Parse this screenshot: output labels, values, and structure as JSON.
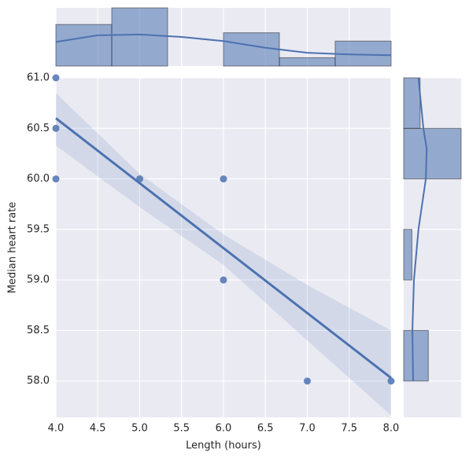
{
  "chart_data": {
    "type": "scatter",
    "x_label": "Length (hours)",
    "y_label": "Median heart rate",
    "x": [
      4,
      4,
      4,
      5,
      6,
      6,
      7,
      8
    ],
    "values": [
      61.0,
      60.5,
      60.0,
      60.0,
      60.0,
      59.0,
      58.0,
      58.0
    ],
    "color": "#4c72b0",
    "regression": {
      "x": [
        4,
        8
      ],
      "values": [
        60.6,
        58.03
      ]
    },
    "ci": {
      "x": [
        4,
        5,
        6,
        7,
        8
      ],
      "upper": [
        60.85,
        60.05,
        59.45,
        58.95,
        58.5
      ],
      "lower": [
        60.33,
        59.72,
        59.15,
        58.4,
        57.66
      ]
    },
    "xlim": [
      4.0,
      8.0
    ],
    "ylim": [
      57.64,
      61.0
    ],
    "xticks": [
      {
        "value": 4,
        "label": "4.0"
      },
      {
        "value": 4.5,
        "label": "4.5"
      },
      {
        "value": 5,
        "label": "5.0"
      },
      {
        "value": 5.5,
        "label": "5.5"
      },
      {
        "value": 6,
        "label": "6.0"
      },
      {
        "value": 6.5,
        "label": "6.5"
      },
      {
        "value": 7,
        "label": "7.0"
      },
      {
        "value": 7.5,
        "label": "7.5"
      },
      {
        "value": 8,
        "label": "8.0"
      }
    ],
    "yticks": [
      {
        "value": 58,
        "label": "58.0"
      },
      {
        "value": 58.5,
        "label": "58.5"
      },
      {
        "value": 59,
        "label": "59.0"
      },
      {
        "value": 59.5,
        "label": "59.5"
      },
      {
        "value": 60,
        "label": "60.0"
      },
      {
        "value": 60.5,
        "label": "60.5"
      },
      {
        "value": 61,
        "label": "61.0"
      }
    ],
    "grid": true,
    "x_hist": {
      "bins": [
        4.0,
        4.667,
        5.333,
        6.0,
        6.667,
        7.333,
        8.0
      ],
      "counts": [
        5,
        7,
        0,
        4,
        1,
        3
      ],
      "max": 7,
      "kde": {
        "x": [
          4,
          4.5,
          5,
          5.5,
          6,
          6.5,
          7,
          7.5,
          8
        ],
        "values": [
          2.9,
          3.7,
          3.8,
          3.5,
          3.0,
          2.2,
          1.6,
          1.4,
          1.3
        ]
      }
    },
    "y_hist": {
      "bins": [
        58.0,
        58.5,
        59.0,
        59.5,
        60.0,
        60.5,
        61.0
      ],
      "counts": [
        3,
        0,
        1,
        0,
        7,
        2
      ],
      "max": 7,
      "kde": {
        "y": [
          58,
          58.5,
          59,
          59.5,
          60,
          60.3,
          60.5,
          61
        ],
        "values": [
          1.15,
          1.06,
          1.25,
          1.8,
          2.7,
          2.8,
          2.4,
          1.8
        ]
      }
    }
  }
}
